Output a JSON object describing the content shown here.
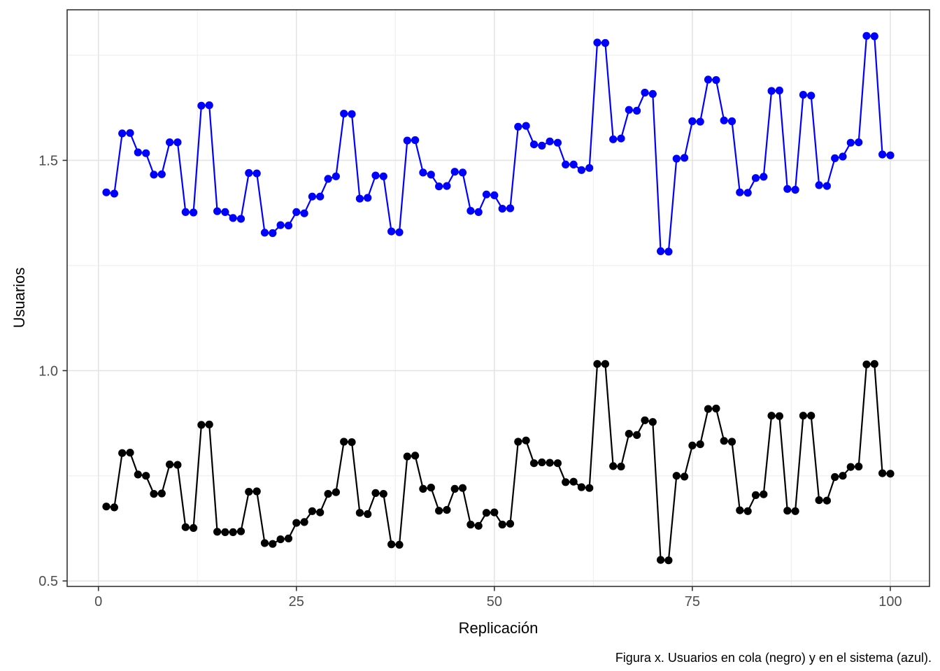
{
  "figure": {
    "x_axis": {
      "title": "Replicación",
      "tick_labels": [
        "0",
        "25",
        "50",
        "75",
        "100"
      ]
    },
    "y_axis": {
      "title": "Usuarios",
      "tick_labels": [
        "0.5",
        "1.0",
        "1.5"
      ]
    },
    "caption": "Figura x. Usuarios en cola (negro) y en el sistema (azul)."
  },
  "style": {
    "series_black": "#000000",
    "series_blue": "#0000FF",
    "grid_major": "#E4E4E4",
    "grid_minor": "#EFEFEF",
    "panel_border": "#343434",
    "tick_mark": "#333333",
    "tick_label_color": "#4D4D4D",
    "background": "#FFFFFF"
  },
  "chart_data": {
    "type": "line",
    "title": "",
    "xlabel": "Replicación",
    "ylabel": "Usuarios",
    "grid": true,
    "legend_position": "none",
    "xlim": [
      -3.95,
      104.95
    ],
    "ylim": [
      0.487,
      1.858
    ],
    "x_breaks": [
      0,
      25,
      50,
      75,
      100
    ],
    "y_breaks": [
      0.5,
      1.0,
      1.5
    ],
    "x_minor_breaks": [
      12.5,
      37.5,
      62.5,
      87.5
    ],
    "y_minor_breaks": [
      0.75,
      1.25,
      1.75
    ],
    "x": [
      1,
      2,
      3,
      4,
      5,
      6,
      7,
      8,
      9,
      10,
      11,
      12,
      13,
      14,
      15,
      16,
      17,
      18,
      19,
      20,
      21,
      22,
      23,
      24,
      25,
      26,
      27,
      28,
      29,
      30,
      31,
      32,
      33,
      34,
      35,
      36,
      37,
      38,
      39,
      40,
      41,
      42,
      43,
      44,
      45,
      46,
      47,
      48,
      49,
      50,
      51,
      52,
      53,
      54,
      55,
      56,
      57,
      58,
      59,
      60,
      61,
      62,
      63,
      64,
      65,
      66,
      67,
      68,
      69,
      70,
      71,
      72,
      73,
      74,
      75,
      76,
      77,
      78,
      79,
      80,
      81,
      82,
      83,
      84,
      85,
      86,
      87,
      88,
      89,
      90,
      91,
      92,
      93,
      94,
      95,
      96,
      97,
      98,
      99,
      100
    ],
    "series": [
      {
        "name": "Usuarios en cola (negro)",
        "color": "#000000",
        "values": [
          0.677,
          0.675,
          0.804,
          0.805,
          0.753,
          0.75,
          0.707,
          0.708,
          0.777,
          0.776,
          0.628,
          0.626,
          0.871,
          0.872,
          0.617,
          0.616,
          0.616,
          0.618,
          0.712,
          0.713,
          0.59,
          0.588,
          0.599,
          0.601,
          0.638,
          0.64,
          0.666,
          0.663,
          0.707,
          0.711,
          0.831,
          0.83,
          0.662,
          0.659,
          0.709,
          0.707,
          0.587,
          0.586,
          0.796,
          0.798,
          0.719,
          0.722,
          0.667,
          0.669,
          0.719,
          0.721,
          0.634,
          0.631,
          0.662,
          0.663,
          0.634,
          0.636,
          0.831,
          0.834,
          0.78,
          0.782,
          0.781,
          0.78,
          0.735,
          0.736,
          0.723,
          0.721,
          1.016,
          1.016,
          0.773,
          0.772,
          0.85,
          0.847,
          0.882,
          0.878,
          0.55,
          0.549,
          0.75,
          0.748,
          0.822,
          0.825,
          0.909,
          0.91,
          0.833,
          0.831,
          0.668,
          0.666,
          0.704,
          0.706,
          0.893,
          0.892,
          0.667,
          0.666,
          0.893,
          0.893,
          0.692,
          0.691,
          0.747,
          0.75,
          0.771,
          0.772,
          1.015,
          1.016,
          0.756,
          0.755
        ]
      },
      {
        "name": "Usuarios en el sistema (azul)",
        "color": "#0000FF",
        "values": [
          1.424,
          1.421,
          1.564,
          1.565,
          1.519,
          1.517,
          1.466,
          1.467,
          1.543,
          1.543,
          1.377,
          1.376,
          1.63,
          1.631,
          1.379,
          1.377,
          1.363,
          1.361,
          1.47,
          1.469,
          1.328,
          1.327,
          1.346,
          1.345,
          1.377,
          1.374,
          1.414,
          1.414,
          1.456,
          1.462,
          1.611,
          1.61,
          1.409,
          1.411,
          1.464,
          1.462,
          1.331,
          1.329,
          1.547,
          1.548,
          1.471,
          1.466,
          1.438,
          1.439,
          1.473,
          1.471,
          1.38,
          1.377,
          1.419,
          1.417,
          1.385,
          1.386,
          1.58,
          1.582,
          1.538,
          1.535,
          1.545,
          1.542,
          1.49,
          1.49,
          1.477,
          1.482,
          1.78,
          1.779,
          1.55,
          1.552,
          1.62,
          1.618,
          1.661,
          1.658,
          1.284,
          1.283,
          1.504,
          1.506,
          1.593,
          1.592,
          1.692,
          1.691,
          1.595,
          1.593,
          1.424,
          1.423,
          1.458,
          1.461,
          1.665,
          1.666,
          1.432,
          1.43,
          1.656,
          1.654,
          1.441,
          1.439,
          1.505,
          1.509,
          1.542,
          1.543,
          1.796,
          1.795,
          1.514,
          1.512
        ]
      }
    ]
  }
}
